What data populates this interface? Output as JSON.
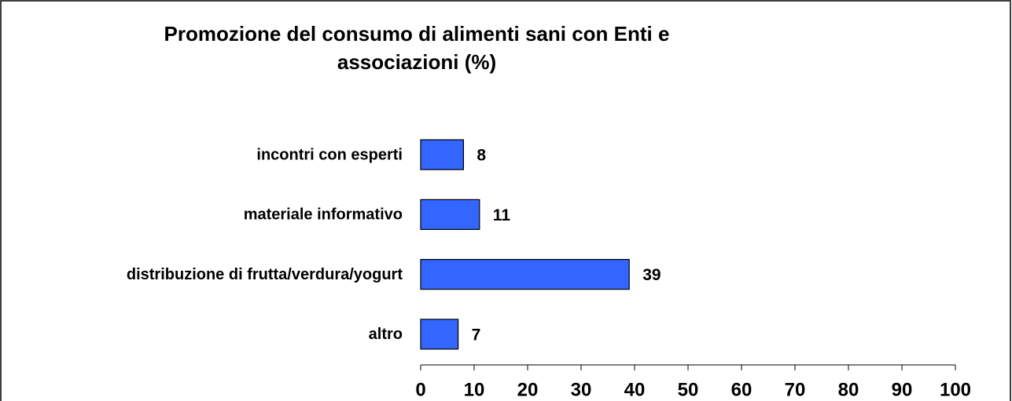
{
  "chart_data": {
    "type": "barh",
    "title": [
      "Promozione del consumo di alimenti sani con Enti e",
      "associazioni (%)"
    ],
    "categories": [
      "incontri con esperti",
      "materiale informativo",
      "distribuzione di frutta/verdura/yogurt",
      "altro"
    ],
    "values": [
      8,
      11,
      39,
      7
    ],
    "color": "#3366ff",
    "xlim": [
      0,
      100
    ],
    "xticks": [
      0,
      10,
      20,
      30,
      40,
      50,
      60,
      70,
      80,
      90,
      100
    ],
    "grid": false
  }
}
